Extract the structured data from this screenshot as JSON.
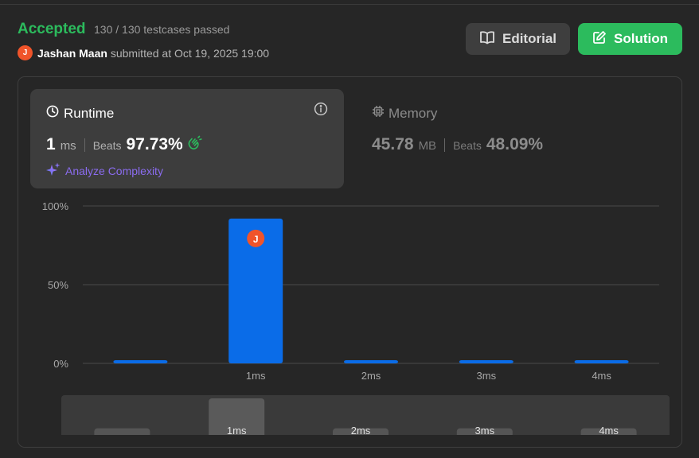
{
  "header": {
    "status": "Accepted",
    "testcases": "130 / 130 testcases passed",
    "avatar_initial": "J",
    "username": "Jashan Maan",
    "submitted_text": "submitted at Oct 19, 2025 19:00",
    "editorial_label": "Editorial",
    "solution_label": "Solution"
  },
  "runtime": {
    "title": "Runtime",
    "value": "1",
    "unit": "ms",
    "beats_label": "Beats",
    "beats_value": "97.73%",
    "analyze_label": "Analyze Complexity"
  },
  "memory": {
    "title": "Memory",
    "value": "45.78",
    "unit": "MB",
    "beats_label": "Beats",
    "beats_value": "48.09%"
  },
  "colors": {
    "accepted": "#2cbb5d",
    "bar": "#0a6ce8",
    "avatar": "#f0542a",
    "analyze": "#8b6cf0"
  },
  "chart_data": {
    "type": "bar",
    "categories": [
      "",
      "1ms",
      "2ms",
      "3ms",
      "4ms"
    ],
    "values": [
      2,
      92,
      2,
      2,
      2
    ],
    "ylim": [
      0,
      100
    ],
    "y_ticks": [
      "0%",
      "50%",
      "100%"
    ],
    "marker_category": "1ms",
    "marker_label": "J",
    "brush_labels": [
      "",
      "1ms",
      "2ms",
      "3ms",
      "4ms"
    ],
    "brush_values": [
      4,
      22,
      4,
      4,
      4
    ],
    "grid": true
  }
}
